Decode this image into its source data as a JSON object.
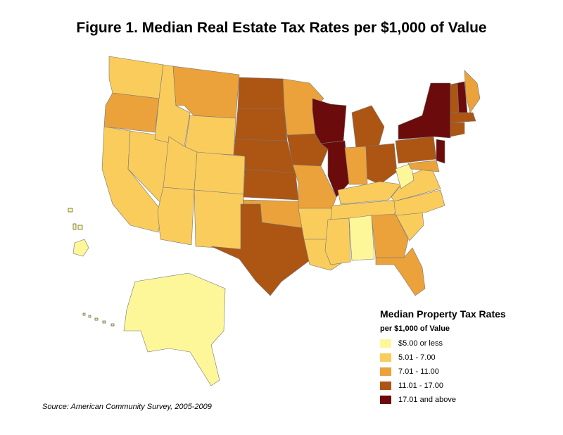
{
  "title": "Figure 1. Median Real Estate Tax Rates per $1,000 of Value",
  "source": "Source: American Community Survey, 2005-2009",
  "legend": {
    "title": "Median Property Tax Rates",
    "subtitle": "per $1,000 of Value",
    "items": [
      {
        "label": "$5.00 or less",
        "color": "#fdf79a"
      },
      {
        "label": "5.01 - 7.00",
        "color": "#f9cc5c"
      },
      {
        "label": "7.01 - 11.00",
        "color": "#eba23a"
      },
      {
        "label": "11.01 - 17.00",
        "color": "#ad5513"
      },
      {
        "label": "17.01 and above",
        "color": "#6b0b0b"
      }
    ]
  },
  "regions": [
    {
      "name": "Washington",
      "cls": 1
    },
    {
      "name": "Oregon",
      "cls": 2
    },
    {
      "name": "California",
      "cls": 1
    },
    {
      "name": "Nevada",
      "cls": 1
    },
    {
      "name": "Idaho",
      "cls": 1
    },
    {
      "name": "Montana",
      "cls": 2
    },
    {
      "name": "Wyoming",
      "cls": 1
    },
    {
      "name": "Utah",
      "cls": 1
    },
    {
      "name": "Colorado",
      "cls": 1
    },
    {
      "name": "Arizona",
      "cls": 1
    },
    {
      "name": "New Mexico",
      "cls": 1
    },
    {
      "name": "North Dakota",
      "cls": 3
    },
    {
      "name": "South Dakota",
      "cls": 3
    },
    {
      "name": "Nebraska",
      "cls": 3
    },
    {
      "name": "Kansas",
      "cls": 3
    },
    {
      "name": "Oklahoma",
      "cls": 2
    },
    {
      "name": "Texas",
      "cls": 3
    },
    {
      "name": "Minnesota",
      "cls": 2
    },
    {
      "name": "Iowa",
      "cls": 3
    },
    {
      "name": "Missouri",
      "cls": 2
    },
    {
      "name": "Arkansas",
      "cls": 1
    },
    {
      "name": "Louisiana",
      "cls": 1
    },
    {
      "name": "Wisconsin",
      "cls": 4
    },
    {
      "name": "Illinois",
      "cls": 4
    },
    {
      "name": "Michigan",
      "cls": 3
    },
    {
      "name": "Indiana",
      "cls": 2
    },
    {
      "name": "Ohio",
      "cls": 3
    },
    {
      "name": "Kentucky",
      "cls": 1
    },
    {
      "name": "Tennessee",
      "cls": 1
    },
    {
      "name": "Mississippi",
      "cls": 1
    },
    {
      "name": "Alabama",
      "cls": 0
    },
    {
      "name": "Georgia",
      "cls": 2
    },
    {
      "name": "Florida",
      "cls": 2
    },
    {
      "name": "South Carolina",
      "cls": 1
    },
    {
      "name": "North Carolina",
      "cls": 1
    },
    {
      "name": "Virginia",
      "cls": 1
    },
    {
      "name": "West Virginia",
      "cls": 0
    },
    {
      "name": "Pennsylvania",
      "cls": 3
    },
    {
      "name": "New York",
      "cls": 4
    },
    {
      "name": "New Jersey",
      "cls": 4
    },
    {
      "name": "Maryland",
      "cls": 2
    },
    {
      "name": "Vermont",
      "cls": 3
    },
    {
      "name": "New Hampshire",
      "cls": 4
    },
    {
      "name": "Maine",
      "cls": 2
    },
    {
      "name": "Massachusetts",
      "cls": 3
    },
    {
      "name": "Connecticut",
      "cls": 3
    },
    {
      "name": "Alaska",
      "cls": 0
    },
    {
      "name": "Hawaii",
      "cls": 0
    }
  ]
}
